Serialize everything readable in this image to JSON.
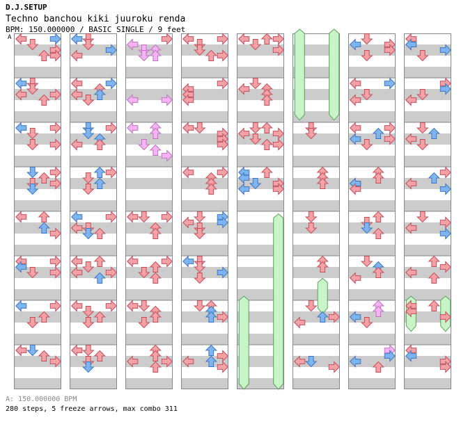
{
  "header": {
    "title_small": "D.J.SETUP",
    "song_title": "Techno banchou kiki juuroku renda",
    "subtitle": "BPM: 150.000000 / BASIC SINGLE / 9 feet",
    "marker_label": "A"
  },
  "footer": {
    "bpm_line": "A: 150.000000 BPM",
    "stats_line": "280 steps, 5 freeze arrows, max combo 311"
  },
  "colors": {
    "red_arrow": "#f4a0a8",
    "blue_arrow": "#7fb4ef",
    "pink_arrow": "#f4b4f4",
    "freeze": "#c8f4c8",
    "stripe": "#cccccc",
    "column_border": "#888888"
  },
  "icons": {
    "left": "arrow-left-icon",
    "down": "arrow-down-icon",
    "up": "arrow-up-icon",
    "right": "arrow-right-icon"
  },
  "chart_data": {
    "type": "other",
    "columns": 8,
    "measures_per_column": 8,
    "beats_per_measure": 4,
    "lanes": [
      "left",
      "down",
      "up",
      "right"
    ],
    "notes": [
      [
        [
          0,
          0,
          "r"
        ],
        [
          0,
          3,
          "b"
        ],
        [
          0.125,
          1,
          "r"
        ],
        [
          0.25,
          3,
          "r"
        ],
        [
          0.375,
          2,
          "r"
        ],
        [
          0.375,
          3,
          "r"
        ],
        [
          1,
          0,
          "b"
        ],
        [
          1,
          1,
          "r"
        ],
        [
          1.125,
          1,
          "r"
        ],
        [
          1.25,
          0,
          "r"
        ],
        [
          1.25,
          3,
          "r"
        ],
        [
          1.375,
          2,
          "r"
        ],
        [
          2,
          0,
          "b"
        ],
        [
          2,
          3,
          "r"
        ],
        [
          2.125,
          1,
          "r"
        ],
        [
          2.375,
          1,
          "r"
        ],
        [
          2.375,
          3,
          "r"
        ],
        [
          3,
          1,
          "b"
        ],
        [
          3,
          3,
          "r"
        ],
        [
          3.125,
          2,
          "r"
        ],
        [
          3.25,
          1,
          "r"
        ],
        [
          3.25,
          3,
          "r"
        ],
        [
          3.375,
          1,
          "b"
        ],
        [
          4,
          0,
          "r"
        ],
        [
          4,
          2,
          "r"
        ],
        [
          4.25,
          2,
          "b"
        ],
        [
          4.375,
          3,
          "r"
        ],
        [
          5,
          0,
          "r"
        ],
        [
          5,
          3,
          "r"
        ],
        [
          5.125,
          0,
          "b"
        ],
        [
          5.25,
          1,
          "r"
        ],
        [
          5.25,
          3,
          "r"
        ],
        [
          6,
          0,
          "b"
        ],
        [
          6,
          3,
          "r"
        ],
        [
          6.25,
          2,
          "r"
        ],
        [
          6.375,
          1,
          "r"
        ],
        [
          7,
          0,
          "r"
        ],
        [
          7,
          1,
          "b"
        ],
        [
          7.125,
          2,
          "r"
        ],
        [
          7.25,
          3,
          "r"
        ]
      ],
      [
        [
          0,
          0,
          "b"
        ],
        [
          0,
          1,
          "r"
        ],
        [
          0.125,
          1,
          "r"
        ],
        [
          0.25,
          3,
          "b"
        ],
        [
          0.375,
          0,
          "r"
        ],
        [
          1,
          0,
          "r"
        ],
        [
          1,
          3,
          "b"
        ],
        [
          1.125,
          2,
          "r"
        ],
        [
          1.25,
          0,
          "r"
        ],
        [
          1.25,
          2,
          "b"
        ],
        [
          1.375,
          1,
          "r"
        ],
        [
          2,
          1,
          "b"
        ],
        [
          2,
          3,
          "r"
        ],
        [
          2.125,
          1,
          "b"
        ],
        [
          2.25,
          2,
          "b"
        ],
        [
          2.375,
          0,
          "r"
        ],
        [
          2.375,
          2,
          "r"
        ],
        [
          3,
          2,
          "b"
        ],
        [
          3,
          3,
          "r"
        ],
        [
          3.125,
          1,
          "r"
        ],
        [
          3.25,
          2,
          "b"
        ],
        [
          3.375,
          1,
          "r"
        ],
        [
          4,
          0,
          "b"
        ],
        [
          4,
          3,
          "r"
        ],
        [
          4.25,
          0,
          "r"
        ],
        [
          4.25,
          1,
          "r"
        ],
        [
          4.375,
          2,
          "r"
        ],
        [
          4.375,
          1,
          "b"
        ],
        [
          5,
          0,
          "r"
        ],
        [
          5,
          2,
          "r"
        ],
        [
          5.125,
          1,
          "r"
        ],
        [
          5.25,
          0,
          "r"
        ],
        [
          5.25,
          3,
          "r"
        ],
        [
          5.375,
          2,
          "b"
        ],
        [
          6,
          0,
          "r"
        ],
        [
          6,
          3,
          "r"
        ],
        [
          6.125,
          1,
          "r"
        ],
        [
          6.25,
          2,
          "r"
        ],
        [
          6.375,
          1,
          "r"
        ],
        [
          7,
          0,
          "r"
        ],
        [
          7,
          1,
          "r"
        ],
        [
          7.125,
          2,
          "r"
        ],
        [
          7.25,
          1,
          "r"
        ],
        [
          7.375,
          1,
          "b"
        ]
      ],
      [
        [
          0,
          3,
          "r"
        ],
        [
          0.125,
          0,
          "p"
        ],
        [
          0.25,
          1,
          "p"
        ],
        [
          0.25,
          2,
          "p"
        ],
        [
          0.375,
          1,
          "p"
        ],
        [
          0.375,
          2,
          "p"
        ],
        [
          1.375,
          0,
          "p"
        ],
        [
          1.375,
          3,
          "p"
        ],
        [
          2,
          0,
          "p"
        ],
        [
          2,
          2,
          "p"
        ],
        [
          2.125,
          2,
          "p"
        ],
        [
          2.375,
          1,
          "p"
        ],
        [
          2.5,
          2,
          "p"
        ],
        [
          2.625,
          3,
          "p"
        ],
        [
          4,
          0,
          "r"
        ],
        [
          4,
          1,
          "r"
        ],
        [
          4,
          3,
          "r"
        ],
        [
          4.25,
          2,
          "r"
        ],
        [
          4.375,
          2,
          "r"
        ],
        [
          5,
          0,
          "r"
        ],
        [
          5,
          3,
          "r"
        ],
        [
          5.125,
          2,
          "r"
        ],
        [
          5.25,
          1,
          "r"
        ],
        [
          5.375,
          2,
          "r"
        ],
        [
          6,
          0,
          "r"
        ],
        [
          6,
          1,
          "r"
        ],
        [
          6.125,
          2,
          "r"
        ],
        [
          6.25,
          2,
          "r"
        ],
        [
          6.375,
          1,
          "r"
        ],
        [
          7,
          2,
          "r"
        ],
        [
          7.125,
          2,
          "r"
        ],
        [
          7.25,
          0,
          "r"
        ],
        [
          7.25,
          3,
          "r"
        ],
        [
          7.375,
          2,
          "r"
        ]
      ],
      [
        [
          0,
          0,
          "r"
        ],
        [
          0,
          3,
          "r"
        ],
        [
          0.125,
          1,
          "r"
        ],
        [
          0.25,
          1,
          "r"
        ],
        [
          0.375,
          2,
          "r"
        ],
        [
          0.375,
          3,
          "r"
        ],
        [
          1,
          3,
          "r"
        ],
        [
          1.125,
          0,
          "r"
        ],
        [
          1.25,
          0,
          "r"
        ],
        [
          1.375,
          0,
          "r"
        ],
        [
          2,
          0,
          "r"
        ],
        [
          2,
          1,
          "r"
        ],
        [
          2.125,
          3,
          "r"
        ],
        [
          2.25,
          3,
          "r"
        ],
        [
          2.375,
          3,
          "r"
        ],
        [
          3,
          0,
          "r"
        ],
        [
          3,
          3,
          "r"
        ],
        [
          3.125,
          2,
          "r"
        ],
        [
          3.25,
          2,
          "r"
        ],
        [
          3.375,
          2,
          "r"
        ],
        [
          4,
          1,
          "r"
        ],
        [
          4,
          3,
          "b"
        ],
        [
          4.125,
          0,
          "r"
        ],
        [
          4.125,
          3,
          "b"
        ],
        [
          4.25,
          1,
          "r"
        ],
        [
          4.375,
          1,
          "r"
        ],
        [
          5,
          0,
          "b"
        ],
        [
          5,
          1,
          "r"
        ],
        [
          5.125,
          1,
          "r"
        ],
        [
          5.25,
          3,
          "b"
        ],
        [
          5.375,
          1,
          "r"
        ],
        [
          6,
          2,
          "r"
        ],
        [
          6,
          1,
          "r"
        ],
        [
          6.125,
          2,
          "b"
        ],
        [
          6.25,
          2,
          "b"
        ],
        [
          6.25,
          3,
          "r"
        ],
        [
          7,
          2,
          "b"
        ],
        [
          7.125,
          3,
          "r"
        ],
        [
          7.25,
          0,
          "r"
        ],
        [
          7.25,
          2,
          "b"
        ],
        [
          7.375,
          3,
          "r"
        ]
      ],
      [
        [
          0,
          0,
          "r"
        ],
        [
          0,
          2,
          "r"
        ],
        [
          0,
          3,
          "r"
        ],
        [
          0.125,
          1,
          "r"
        ],
        [
          0.25,
          3,
          "r"
        ],
        [
          1,
          1,
          "r"
        ],
        [
          1.125,
          0,
          "r"
        ],
        [
          1.125,
          2,
          "r"
        ],
        [
          1.25,
          2,
          "r"
        ],
        [
          1.375,
          2,
          "r"
        ],
        [
          2,
          1,
          "r"
        ],
        [
          2,
          2,
          "r"
        ],
        [
          2.125,
          0,
          "r"
        ],
        [
          2.125,
          3,
          "r"
        ],
        [
          2.25,
          1,
          "r"
        ],
        [
          2.375,
          2,
          "r"
        ],
        [
          2.375,
          3,
          "r"
        ],
        [
          3,
          0,
          "b"
        ],
        [
          3,
          2,
          "r"
        ],
        [
          3.125,
          0,
          "b"
        ],
        [
          3.25,
          1,
          "b"
        ],
        [
          3.25,
          3,
          "r"
        ],
        [
          3.375,
          0,
          "b"
        ],
        [
          3.375,
          3,
          "r"
        ]
      ],
      [
        [
          2,
          1,
          "r"
        ],
        [
          2.125,
          1,
          "r"
        ],
        [
          3,
          2,
          "r"
        ],
        [
          3.125,
          2,
          "r"
        ],
        [
          3.25,
          2,
          "r"
        ],
        [
          4,
          1,
          "r"
        ],
        [
          4.25,
          1,
          "r"
        ],
        [
          5,
          2,
          "r"
        ],
        [
          5.125,
          2,
          "r"
        ],
        [
          6,
          1,
          "r"
        ],
        [
          6.25,
          2,
          "b"
        ],
        [
          6.25,
          3,
          "r"
        ],
        [
          6.375,
          0,
          "r"
        ],
        [
          7.25,
          0,
          "r"
        ],
        [
          7.25,
          1,
          "b"
        ],
        [
          7.375,
          3,
          "r"
        ]
      ],
      [
        [
          0,
          1,
          "r"
        ],
        [
          0.125,
          0,
          "b"
        ],
        [
          0.125,
          3,
          "r"
        ],
        [
          0.25,
          3,
          "r"
        ],
        [
          0.375,
          1,
          "r"
        ],
        [
          1,
          0,
          "r"
        ],
        [
          1,
          3,
          "b"
        ],
        [
          1.25,
          1,
          "r"
        ],
        [
          1.375,
          0,
          "r"
        ],
        [
          2,
          0,
          "r"
        ],
        [
          2,
          3,
          "r"
        ],
        [
          2.125,
          2,
          "b"
        ],
        [
          2.25,
          0,
          "b"
        ],
        [
          2.25,
          3,
          "r"
        ],
        [
          2.375,
          1,
          "r"
        ],
        [
          3,
          2,
          "r"
        ],
        [
          3.125,
          2,
          "r"
        ],
        [
          3.25,
          0,
          "r"
        ],
        [
          3.25,
          0,
          "b"
        ],
        [
          3.375,
          0,
          "r"
        ],
        [
          4,
          2,
          "r"
        ],
        [
          4.125,
          1,
          "r"
        ],
        [
          4.25,
          1,
          "b"
        ],
        [
          4.375,
          2,
          "r"
        ],
        [
          5,
          1,
          "r"
        ],
        [
          5.125,
          2,
          "b"
        ],
        [
          5.25,
          2,
          "r"
        ],
        [
          5.375,
          0,
          "r"
        ],
        [
          6,
          2,
          "p"
        ],
        [
          6.125,
          2,
          "p"
        ],
        [
          6.25,
          0,
          "b"
        ],
        [
          6.375,
          1,
          "r"
        ],
        [
          7,
          3,
          "p"
        ],
        [
          7.125,
          3,
          "b"
        ],
        [
          7.25,
          0,
          "b"
        ],
        [
          7.375,
          2,
          "r"
        ]
      ],
      [
        [
          0,
          0,
          "r"
        ],
        [
          0.125,
          0,
          "p"
        ],
        [
          0.125,
          0,
          "b"
        ],
        [
          0.25,
          3,
          "b"
        ],
        [
          0.375,
          1,
          "r"
        ],
        [
          1,
          3,
          "r"
        ],
        [
          1.125,
          3,
          "b"
        ],
        [
          1.25,
          1,
          "r"
        ],
        [
          1.375,
          0,
          "r"
        ],
        [
          2,
          1,
          "r"
        ],
        [
          2.125,
          2,
          "b"
        ],
        [
          2.25,
          0,
          "r"
        ],
        [
          2.375,
          1,
          "r"
        ],
        [
          3,
          3,
          "r"
        ],
        [
          3.125,
          2,
          "b"
        ],
        [
          3.25,
          0,
          "r"
        ],
        [
          3.375,
          3,
          "b"
        ],
        [
          4,
          1,
          "r"
        ],
        [
          4.125,
          3,
          "r"
        ],
        [
          4.25,
          0,
          "r"
        ],
        [
          4.375,
          3,
          "b"
        ],
        [
          5,
          2,
          "r"
        ],
        [
          5.125,
          3,
          "r"
        ],
        [
          5.25,
          0,
          "r"
        ],
        [
          5.375,
          2,
          "r"
        ],
        [
          6,
          0,
          "r"
        ],
        [
          6,
          2,
          "r"
        ],
        [
          6.125,
          0,
          "r"
        ],
        [
          6.25,
          3,
          "r"
        ],
        [
          7,
          0,
          "r"
        ],
        [
          7.125,
          0,
          "b"
        ],
        [
          7.25,
          3,
          "r"
        ],
        [
          7.375,
          3,
          "r"
        ]
      ]
    ],
    "freezes": [
      [
        5,
        0,
        0,
        1.95
      ],
      [
        5,
        3,
        0,
        1.95
      ],
      [
        4,
        3,
        4.15,
        8
      ],
      [
        4,
        0,
        6,
        8
      ],
      [
        5,
        2,
        5.6,
        6.3
      ],
      [
        7,
        0,
        6,
        6.7
      ],
      [
        7,
        3,
        6,
        6.7
      ]
    ]
  }
}
